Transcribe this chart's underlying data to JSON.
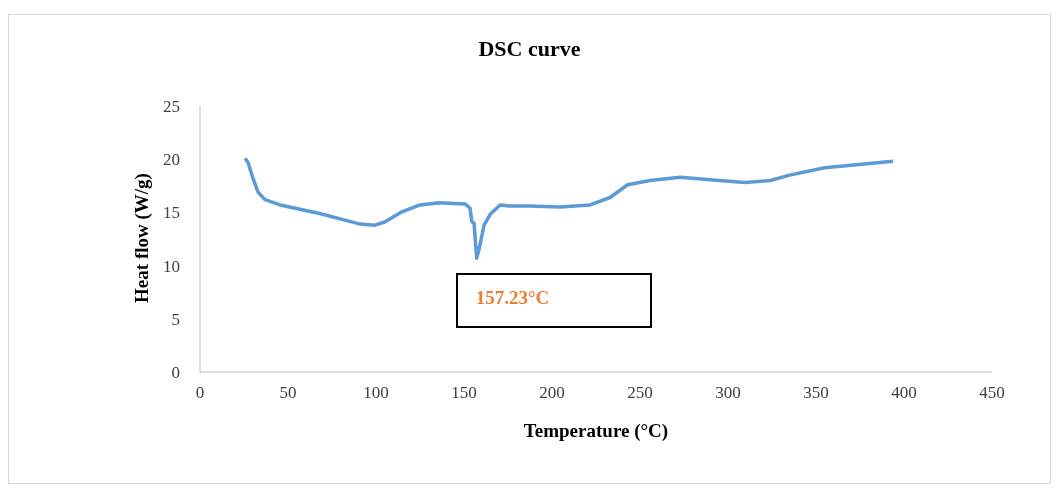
{
  "chart_data": {
    "type": "line",
    "title": "DSC curve",
    "xlabel": "Temperature (°C)",
    "ylabel": "Heat flow (W/g)",
    "x": [
      25.6,
      27.3,
      30.1,
      33,
      36.9,
      45.5,
      68,
      91,
      99.4,
      105,
      114,
      125,
      136,
      150.6,
      153.4,
      154.5,
      155.7,
      157.2,
      158.5,
      161.4,
      164.8,
      170.5,
      176,
      187.5,
      204.5,
      221.6,
      233,
      243,
      255.7,
      272.7,
      295,
      309.7,
      324,
      335,
      355,
      393.8
    ],
    "series": [
      {
        "color": "#5b9bd5",
        "values": [
          20.1,
          19.7,
          18.2,
          16.9,
          16.2,
          15.7,
          14.9,
          13.9,
          13.8,
          14.1,
          15.0,
          15.7,
          15.9,
          15.8,
          15.4,
          14.1,
          14.0,
          10.7,
          11.5,
          13.8,
          14.8,
          15.7,
          15.6,
          15.6,
          15.5,
          15.7,
          16.4,
          17.6,
          18.0,
          18.3,
          18.0,
          17.8,
          18.0,
          18.5,
          19.2,
          19.8
        ]
      }
    ],
    "xlim": [
      0,
      450
    ],
    "xticks": [
      0,
      50,
      100,
      150,
      200,
      250,
      300,
      350,
      400,
      450
    ],
    "ylim": [
      0,
      25
    ],
    "yticks": [
      0,
      5,
      10,
      15,
      20,
      25
    ],
    "annotations": [
      {
        "text": "157.23°C",
        "x": 157.23,
        "y": 10.7
      }
    ],
    "grid": false,
    "legend": false,
    "marker": "none",
    "line_style": "solid"
  }
}
